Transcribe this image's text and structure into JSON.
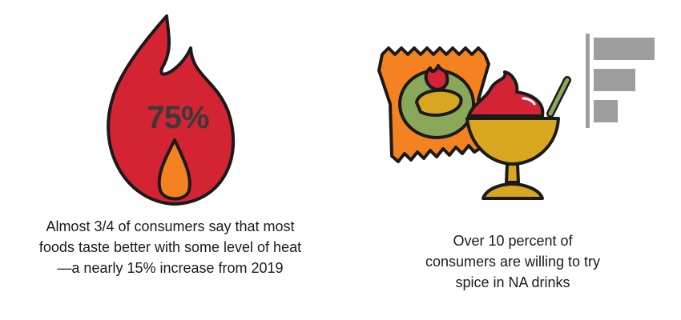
{
  "left_panel": {
    "flame_stat": "75%",
    "caption": "Almost 3/4 of consumers say that most foods taste better with some level of heat—a nearly 15% increase from 2019",
    "colors": {
      "flame": "#d42433",
      "inner_flame": "#f58220",
      "outline": "#1a1a1a"
    }
  },
  "right_panel": {
    "caption": "Over 10 percent of consumers are willing to try spice in NA drinks",
    "icons": [
      "chip-bag-icon",
      "sundae-cup-icon",
      "bar-chart-icon"
    ],
    "colors": {
      "bag": "#f58220",
      "bag_circle": "#8aa85a",
      "cup": "#d9a61f",
      "topping": "#d42433",
      "bars": "#9d9d9d"
    }
  }
}
